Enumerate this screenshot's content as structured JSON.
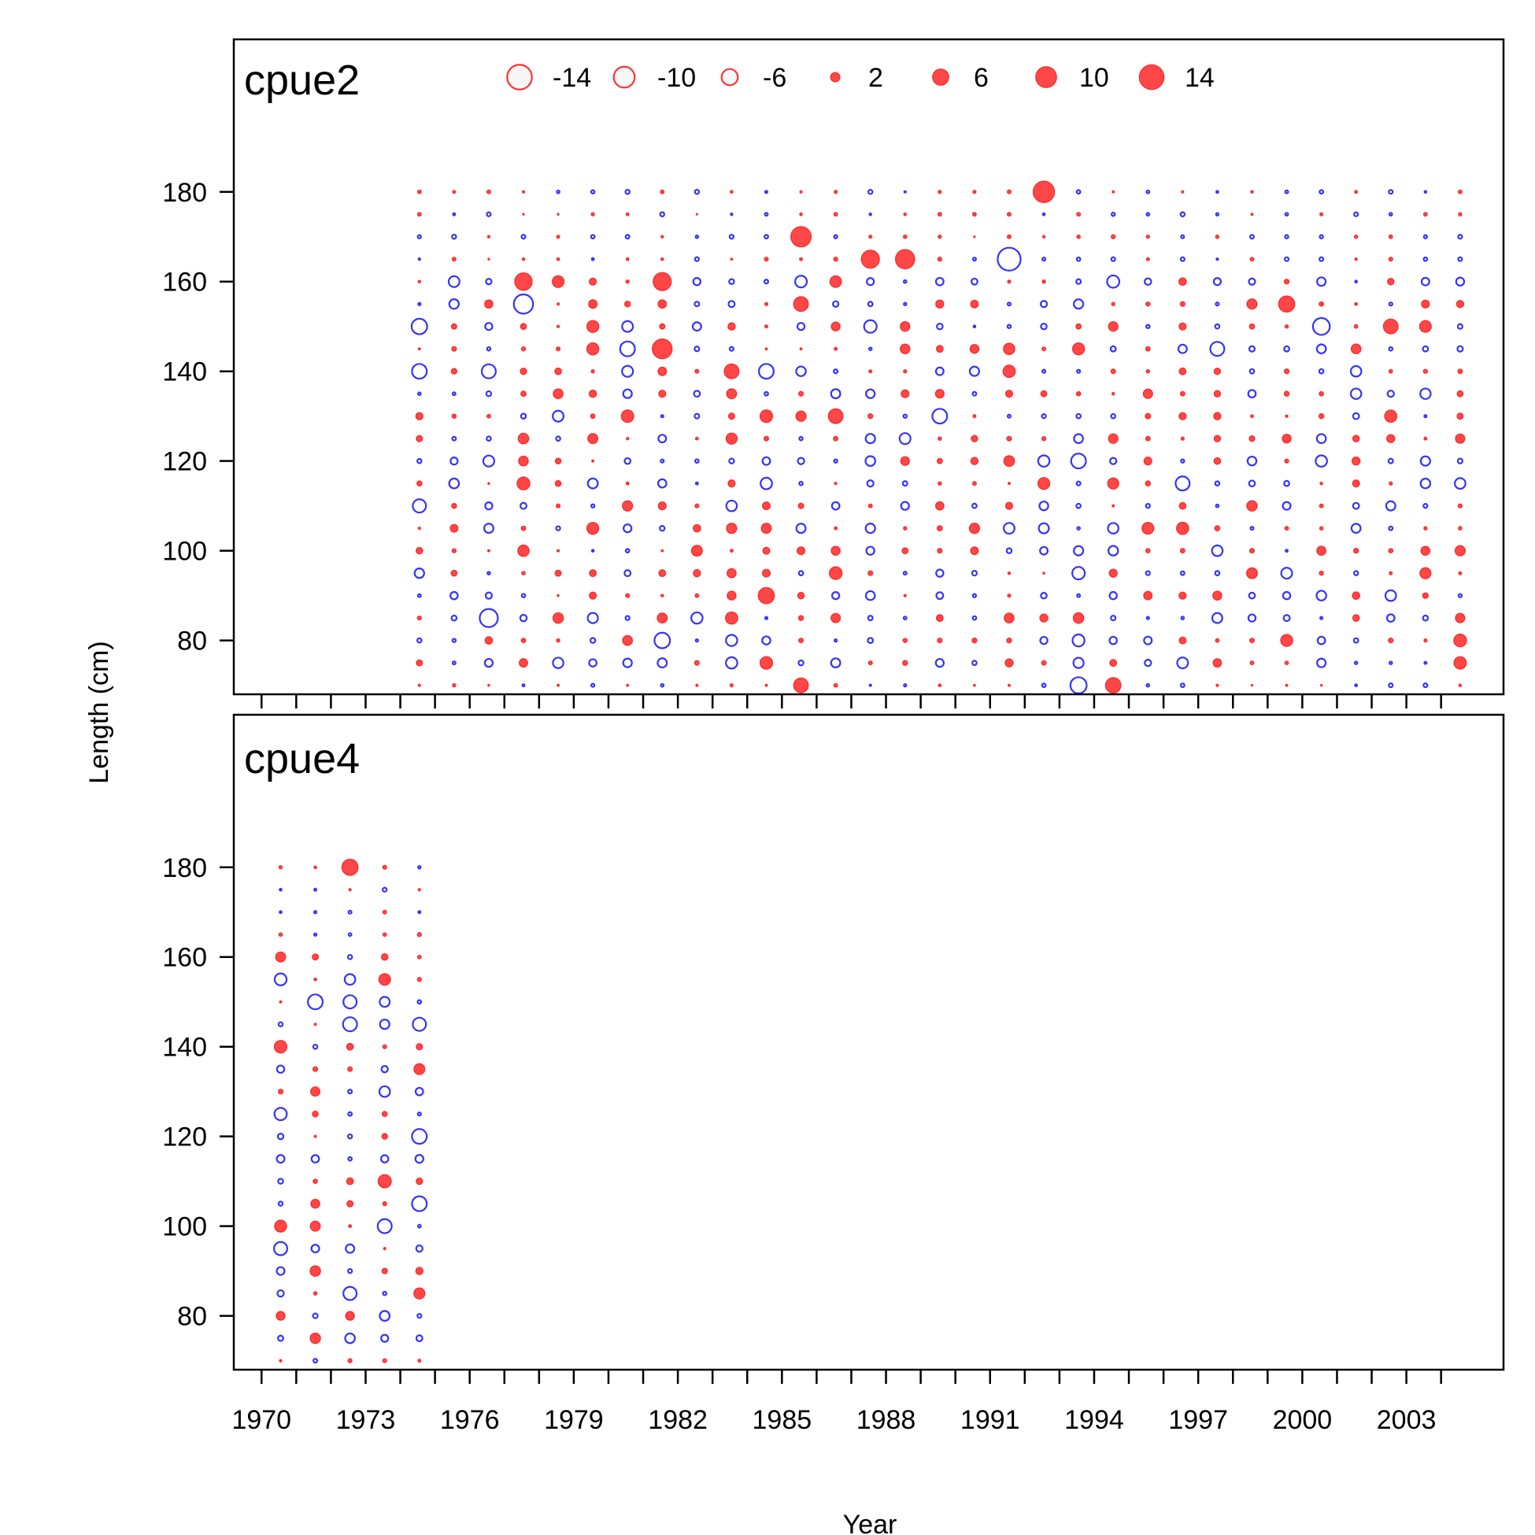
{
  "chart_data": {
    "type": "scatter",
    "subtype": "bubble residual plot",
    "xlabel": "Year",
    "ylabel": "Length (cm)",
    "xlim": [
      1969.2,
      2005.8
    ],
    "x_ticks": [
      1970,
      1973,
      1976,
      1979,
      1982,
      1985,
      1988,
      1991,
      1994,
      1997,
      2000,
      2003
    ],
    "y_ticks": [
      80,
      100,
      120,
      140,
      160,
      180
    ],
    "ylim": [
      68,
      214
    ],
    "length_bins": [
      70,
      75,
      80,
      85,
      90,
      95,
      100,
      105,
      110,
      115,
      120,
      125,
      130,
      135,
      140,
      145,
      150,
      155,
      160,
      165,
      170,
      175,
      180
    ],
    "colors": {
      "positive": "#ff0000",
      "negative": "#0000ff",
      "legend_open_fill": "#f7f7f7",
      "frame": "#000000"
    },
    "legend": {
      "placement": "top",
      "values": [
        -14,
        -10,
        -6,
        2,
        6,
        10,
        14
      ],
      "labels": [
        "-14",
        "-10",
        "-6",
        "2",
        "6",
        "10",
        "14"
      ]
    },
    "panels": [
      {
        "name": "cpue2",
        "years": [
          1974,
          1975,
          1976,
          1977,
          1978,
          1979,
          1980,
          1981,
          1982,
          1983,
          1984,
          1985,
          1986,
          1987,
          1988,
          1989,
          1990,
          1991,
          1992,
          1993,
          1994,
          1995,
          1996,
          1997,
          1998,
          1999,
          2000,
          2001,
          2002,
          2003,
          2004
        ],
        "notable_points": [
          {
            "year": 1974,
            "length": 150,
            "residual": -5.5
          },
          {
            "year": 1974,
            "length": 140,
            "residual": -5.0
          },
          {
            "year": 1974,
            "length": 110,
            "residual": -4.0
          },
          {
            "year": 1976,
            "length": 85,
            "residual": -7.5
          },
          {
            "year": 1976,
            "length": 140,
            "residual": -4.5
          },
          {
            "year": 1977,
            "length": 160,
            "residual": 7.0
          },
          {
            "year": 1977,
            "length": 155,
            "residual": -8.5
          },
          {
            "year": 1980,
            "length": 145,
            "residual": -5.0
          },
          {
            "year": 1981,
            "length": 160,
            "residual": 7.5
          },
          {
            "year": 1981,
            "length": 145,
            "residual": 9.0
          },
          {
            "year": 1981,
            "length": 80,
            "residual": -5.5
          },
          {
            "year": 1983,
            "length": 140,
            "residual": 5.0
          },
          {
            "year": 1984,
            "length": 90,
            "residual": 6.0
          },
          {
            "year": 1984,
            "length": 140,
            "residual": -5.0
          },
          {
            "year": 1985,
            "length": 170,
            "residual": 9.5
          },
          {
            "year": 1985,
            "length": 155,
            "residual": 5.0
          },
          {
            "year": 1985,
            "length": 70,
            "residual": 5.0
          },
          {
            "year": 1986,
            "length": 130,
            "residual": 5.0
          },
          {
            "year": 1987,
            "length": 165,
            "residual": 7.5
          },
          {
            "year": 1988,
            "length": 165,
            "residual": 8.5
          },
          {
            "year": 1989,
            "length": 130,
            "residual": -5.0
          },
          {
            "year": 1991,
            "length": 165,
            "residual": -12.0
          },
          {
            "year": 1992,
            "length": 180,
            "residual": 10.5
          },
          {
            "year": 1993,
            "length": 120,
            "residual": -5.0
          },
          {
            "year": 1993,
            "length": 70,
            "residual": -6.0
          },
          {
            "year": 1994,
            "length": 70,
            "residual": 5.5
          },
          {
            "year": 1996,
            "length": 115,
            "residual": -4.5
          },
          {
            "year": 1997,
            "length": 145,
            "residual": -4.5
          },
          {
            "year": 1999,
            "length": 155,
            "residual": 6.0
          },
          {
            "year": 2000,
            "length": 150,
            "residual": -6.5
          },
          {
            "year": 2002,
            "length": 150,
            "residual": 5.0
          }
        ]
      },
      {
        "name": "cpue4",
        "years": [
          1970,
          1971,
          1972,
          1973,
          1974
        ],
        "notable_points": [
          {
            "year": 1970,
            "length": 95,
            "residual": -4.0
          },
          {
            "year": 1971,
            "length": 150,
            "residual": -5.0
          },
          {
            "year": 1972,
            "length": 180,
            "residual": 6.0
          },
          {
            "year": 1972,
            "length": 150,
            "residual": -4.0
          },
          {
            "year": 1972,
            "length": 145,
            "residual": -4.5
          },
          {
            "year": 1972,
            "length": 85,
            "residual": -4.0
          },
          {
            "year": 1973,
            "length": 110,
            "residual": 4.0
          },
          {
            "year": 1973,
            "length": 100,
            "residual": -4.5
          },
          {
            "year": 1974,
            "length": 145,
            "residual": -4.0
          },
          {
            "year": 1974,
            "length": 120,
            "residual": -5.0
          },
          {
            "year": 1974,
            "length": 105,
            "residual": -5.0
          }
        ]
      }
    ]
  }
}
